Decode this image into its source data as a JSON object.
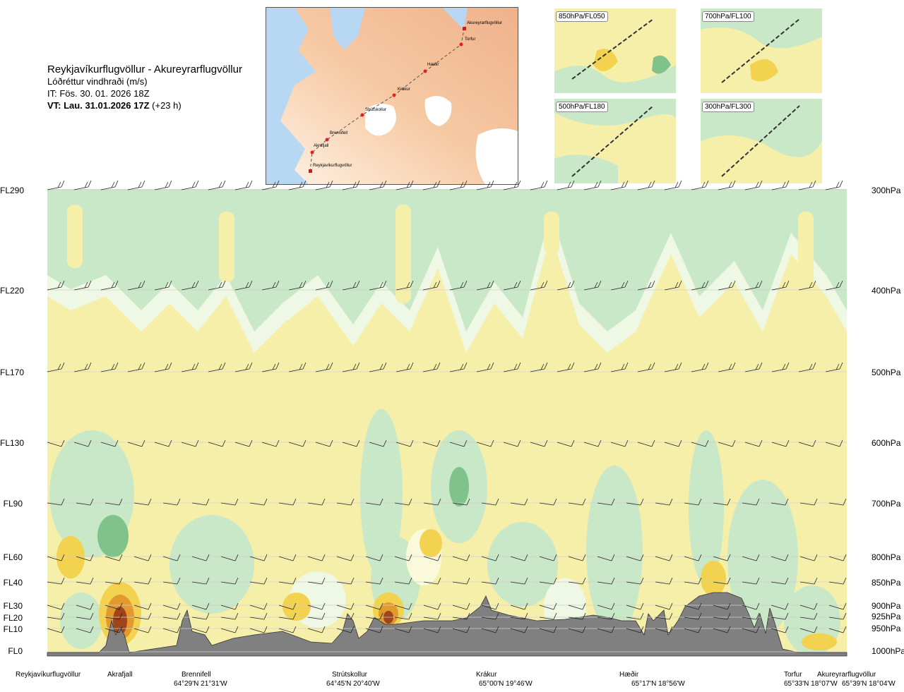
{
  "header": {
    "route": "Reykjavíkurflugvöllur - Akureyrarflugvöllur",
    "parameter": "Lóðréttur vindhraði (m/s)",
    "issue_time": "IT: Fös. 30. 01. 2026 18Z",
    "valid_time_bold": "VT: Lau. 31.01.2026 17Z",
    "valid_offset": "(+23 h)"
  },
  "map": {
    "points": [
      {
        "name": "Akureyrarflugvöllur"
      },
      {
        "name": "Torfur"
      },
      {
        "name": "Hæðir"
      },
      {
        "name": "Krákur"
      },
      {
        "name": "Strútskollur"
      },
      {
        "name": "Brennifell"
      },
      {
        "name": "Akrafjall"
      },
      {
        "name": "Reykjavíkurflugvöllur"
      }
    ]
  },
  "mini_maps": [
    {
      "label": "850hPa/FL050"
    },
    {
      "label": "700hPa/FL100"
    },
    {
      "label": "500hPa/FL180"
    },
    {
      "label": "300hPa/FL300"
    }
  ],
  "chart_data": {
    "type": "heatmap",
    "title": "Lóðréttur vindhraði (m/s)",
    "xlabel": "",
    "ylabel": "",
    "flight_levels": [
      "FL290",
      "FL220",
      "FL170",
      "FL130",
      "FL90",
      "FL60",
      "FL40",
      "FL30",
      "FL20",
      "FL10",
      "FL0"
    ],
    "pressure_levels": [
      "300hPa",
      "400hPa",
      "500hPa",
      "600hPa",
      "700hPa",
      "800hPa",
      "850hPa",
      "900hPa",
      "925hPa",
      "950hPa",
      "1000hPa"
    ],
    "waypoints": [
      {
        "name": "Reykjavíkurflugvöllur",
        "coord": ""
      },
      {
        "name": "Akrafjall",
        "coord": ""
      },
      {
        "name": "Brennifell",
        "coord": "64°29'N 21°31'W"
      },
      {
        "name": "Strútskollur",
        "coord": "64°45'N 20°40'W"
      },
      {
        "name": "Krákur",
        "coord": "65°00'N 19°46'W"
      },
      {
        "name": "Hæðir",
        "coord": "65°17'N 18°56'W"
      },
      {
        "name": "Torfur",
        "coord": "65°33'N 18°07'W"
      },
      {
        "name": "Akureyrarflugvöllur",
        "coord": "65°39'N 18°04'W"
      }
    ],
    "colors": {
      "strong_down": "#7fc28a",
      "down": "#c9e8c8",
      "weak_down": "#eef8e4",
      "neutral": "#f6efaa",
      "weak_up": "#fbf9dc",
      "up": "#f2d24e",
      "strong_up": "#e29a2e",
      "very_strong_up": "#a0441a",
      "terrain": "#808080"
    }
  }
}
